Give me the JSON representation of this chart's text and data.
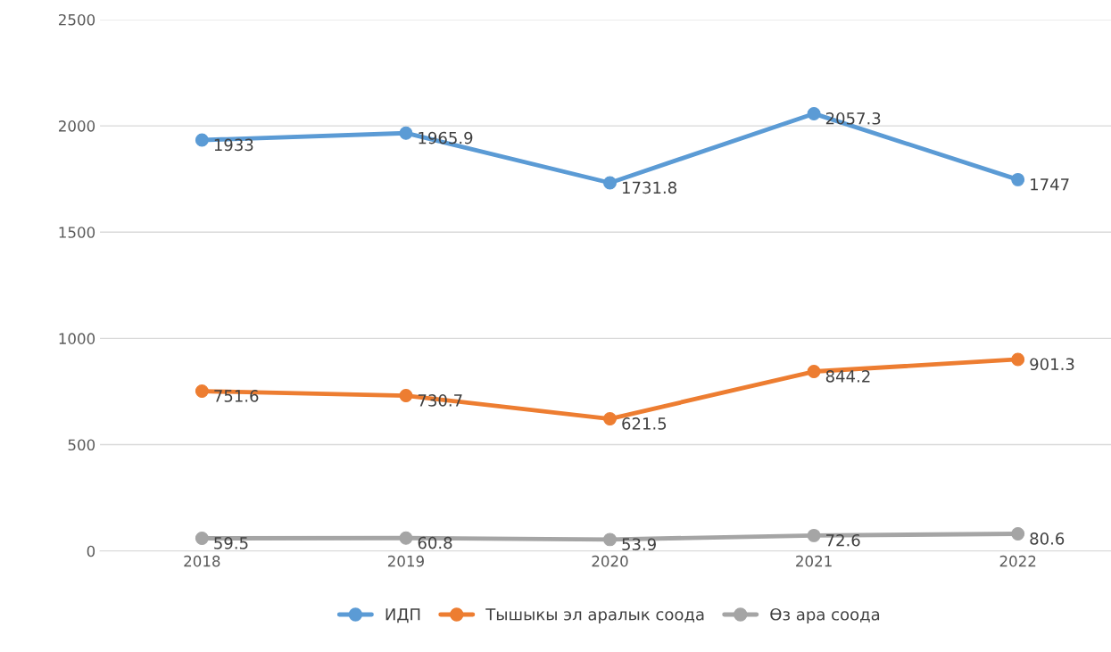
{
  "chart_data": {
    "type": "line",
    "categories": [
      "2018",
      "2019",
      "2020",
      "2021",
      "2022"
    ],
    "series": [
      {
        "name": "ИДП",
        "color": "#5b9bd5",
        "values": [
          1933,
          1965.9,
          1731.8,
          2057.3,
          1747
        ]
      },
      {
        "name": "Тышыкы эл аралык соода",
        "color": "#ed7d31",
        "values": [
          751.6,
          730.7,
          621.5,
          844.2,
          901.3
        ]
      },
      {
        "name": "Өз ара соода",
        "color": "#a5a5a5",
        "values": [
          59.5,
          60.8,
          53.9,
          72.6,
          80.6
        ]
      }
    ],
    "ylim": [
      0,
      2500
    ],
    "yticks": [
      0,
      500,
      1000,
      1500,
      2000,
      2500
    ],
    "grid": "y",
    "legend": "bottom",
    "marker": "circle",
    "line_style": "solid",
    "data_labels": true
  }
}
